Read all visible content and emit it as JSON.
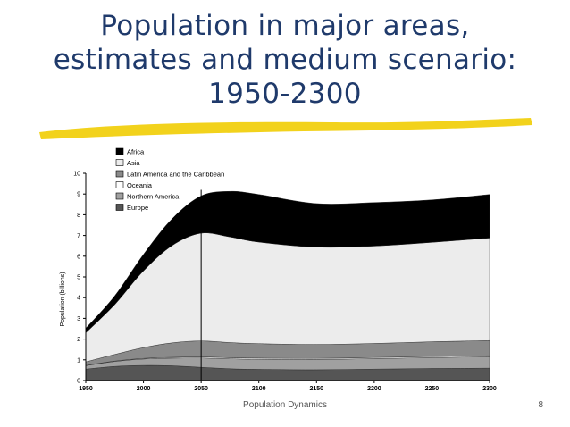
{
  "slide": {
    "title_lines": [
      "Population in major areas,",
      "estimates and medium scenario:",
      "1950-2300"
    ],
    "footer": "Population Dynamics",
    "page_number": "8"
  },
  "colors": {
    "title": "#1f3a6b",
    "highlight": "#f2d21c"
  },
  "chart_data": {
    "type": "area",
    "stacked": true,
    "ylabel": "Population (billions)",
    "xlabel": "",
    "ylim": [
      0,
      10
    ],
    "xlim": [
      1950,
      2300
    ],
    "x_ticks": [
      1950,
      2000,
      2050,
      2100,
      2150,
      2200,
      2250,
      2300
    ],
    "y_ticks": [
      0,
      1,
      2,
      3,
      4,
      5,
      6,
      7,
      8,
      9,
      10
    ],
    "x": [
      1950,
      1975,
      2000,
      2025,
      2050,
      2075,
      2100,
      2150,
      2200,
      2250,
      2300
    ],
    "grid": false,
    "legend_position": "top-left",
    "vertical_marker_x": 2050,
    "series": [
      {
        "name": "Europe",
        "color": "#555555",
        "values": [
          0.55,
          0.68,
          0.73,
          0.71,
          0.64,
          0.57,
          0.54,
          0.52,
          0.55,
          0.58,
          0.6
        ]
      },
      {
        "name": "Northern America",
        "color": "#a0a0a0",
        "values": [
          0.17,
          0.24,
          0.31,
          0.37,
          0.45,
          0.48,
          0.49,
          0.5,
          0.51,
          0.53,
          0.55
        ]
      },
      {
        "name": "Oceania",
        "color": "#ffffff",
        "values": [
          0.01,
          0.02,
          0.03,
          0.04,
          0.05,
          0.05,
          0.05,
          0.05,
          0.05,
          0.05,
          0.05
        ]
      },
      {
        "name": "Latin America and the Caribbean",
        "color": "#8a8a8a",
        "values": [
          0.17,
          0.32,
          0.52,
          0.7,
          0.77,
          0.73,
          0.7,
          0.67,
          0.68,
          0.71,
          0.73
        ]
      },
      {
        "name": "Asia",
        "color": "#ececec",
        "values": [
          1.4,
          2.4,
          3.7,
          4.7,
          5.2,
          5.1,
          4.9,
          4.7,
          4.7,
          4.8,
          4.95
        ]
      },
      {
        "name": "Africa",
        "color": "#000000",
        "values": [
          0.22,
          0.42,
          0.8,
          1.3,
          1.8,
          2.2,
          2.3,
          2.1,
          2.1,
          2.05,
          2.1
        ]
      }
    ]
  }
}
